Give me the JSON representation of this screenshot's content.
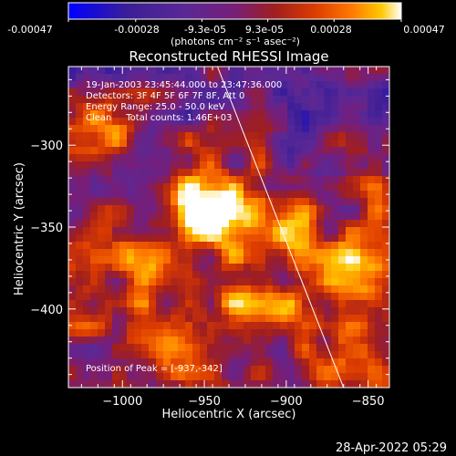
{
  "colorbar": {
    "tick_labels": [
      "-0.00047",
      "-0.00028",
      "-9.3e-05",
      "9.3e-05",
      "0.00028",
      "0.00047"
    ],
    "unit_label": "(photons cm⁻² s⁻¹ asec⁻²)",
    "range": [
      -0.00047,
      0.00047
    ]
  },
  "annotations": {
    "time_range": "19-Jan-2003 23:45:44.000 to 23:47:36.000",
    "detectors": "Detectors: 3F 4F 5F 6F 7F 8F, Att 0",
    "energy_range": "Energy Range: 25.0 - 50.0 keV",
    "clean_counts": "Clean     Total counts: 1.46E+03",
    "peak_position": "Position of Peak = [-937,-342]"
  },
  "timestamp": "28-Apr-2022 05:29",
  "colors": {
    "background": "#000000",
    "foreground": "#ffffff",
    "colormap": [
      "#0000ff",
      "#3c1e96",
      "#5a2896",
      "#781e78",
      "#a01e1e",
      "#dc3c00",
      "#ff7800",
      "#ffc800",
      "#ffffff"
    ]
  },
  "chart_data": {
    "type": "heatmap",
    "title": "Reconstructed RHESSI Image",
    "xlabel": "Heliocentric X (arcsec)",
    "ylabel": "Heliocentric Y (arcsec)",
    "xlim": [
      -1033,
      -837
    ],
    "ylim": [
      -448,
      -252
    ],
    "x_ticks": [
      -1000,
      -950,
      -900,
      -850
    ],
    "y_ticks": [
      -300,
      -350,
      -400
    ],
    "peak": {
      "x": -937,
      "y": -342
    },
    "limb_line": {
      "x": [
        -942,
        -865
      ],
      "y": [
        -252,
        -448
      ]
    },
    "grid": false,
    "legend": "colorbar above plot"
  }
}
